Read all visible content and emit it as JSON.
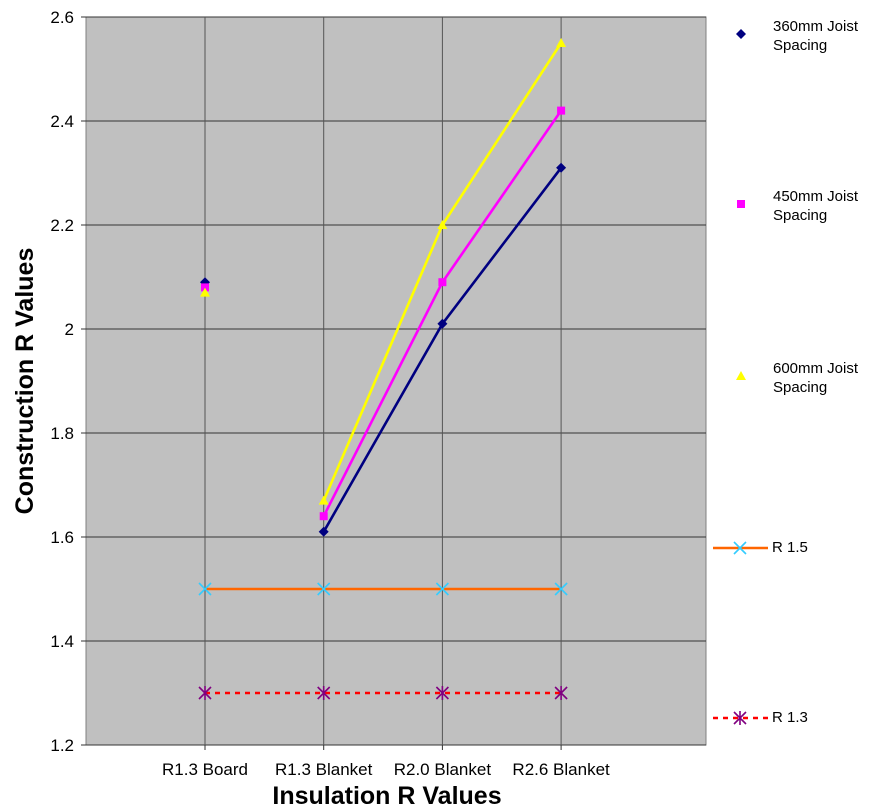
{
  "chart_data": {
    "type": "line",
    "xlabel": "Insulation R Values",
    "ylabel": "Construction R Values",
    "categories": [
      "R1.3 Board",
      "R1.3 Blanket",
      "R2.0 Blanket",
      "R2.6 Blanket"
    ],
    "ylim": [
      1.2,
      2.6
    ],
    "yticks": [
      "1.2",
      "1.4",
      "1.6",
      "1.8",
      "2",
      "2.2",
      "2.4",
      "2.6"
    ],
    "ytick_values": [
      1.2,
      1.4,
      1.6,
      1.8,
      2.0,
      2.2,
      2.4,
      2.6
    ],
    "grid": true,
    "legend_position": "right",
    "plot_background": "#c0c0c0",
    "series": [
      {
        "name": "360mm Joist Spacing",
        "legend_lines": [
          "360mm Joist",
          "Spacing"
        ],
        "values": [
          2.09,
          1.61,
          2.01,
          2.31
        ],
        "color": "#000080",
        "marker": "diamond",
        "line_from_index": 1,
        "line_style": "solid"
      },
      {
        "name": "450mm Joist Spacing",
        "legend_lines": [
          "450mm Joist",
          "Spacing"
        ],
        "values": [
          2.08,
          1.64,
          2.09,
          2.42
        ],
        "color": "#ff00ff",
        "marker": "square",
        "line_from_index": 1,
        "line_style": "solid"
      },
      {
        "name": "600mm Joist Spacing",
        "legend_lines": [
          "600mm Joist",
          "Spacing"
        ],
        "values": [
          2.07,
          1.67,
          2.2,
          2.55
        ],
        "color": "#ffff00",
        "marker": "triangle",
        "line_from_index": 1,
        "line_style": "solid"
      },
      {
        "name": "R 1.5",
        "legend_lines": [
          "R 1.5"
        ],
        "values": [
          1.5,
          1.5,
          1.5,
          1.5
        ],
        "color": "#ff6600",
        "marker_color": "#33ccff",
        "marker": "x",
        "line_from_index": 0,
        "line_style": "solid"
      },
      {
        "name": "R 1.3",
        "legend_lines": [
          "R 1.3"
        ],
        "values": [
          1.3,
          1.3,
          1.3,
          1.3
        ],
        "color": "#ff0000",
        "marker_color": "#800080",
        "marker": "star",
        "line_from_index": 0,
        "line_style": "dashed"
      }
    ]
  }
}
